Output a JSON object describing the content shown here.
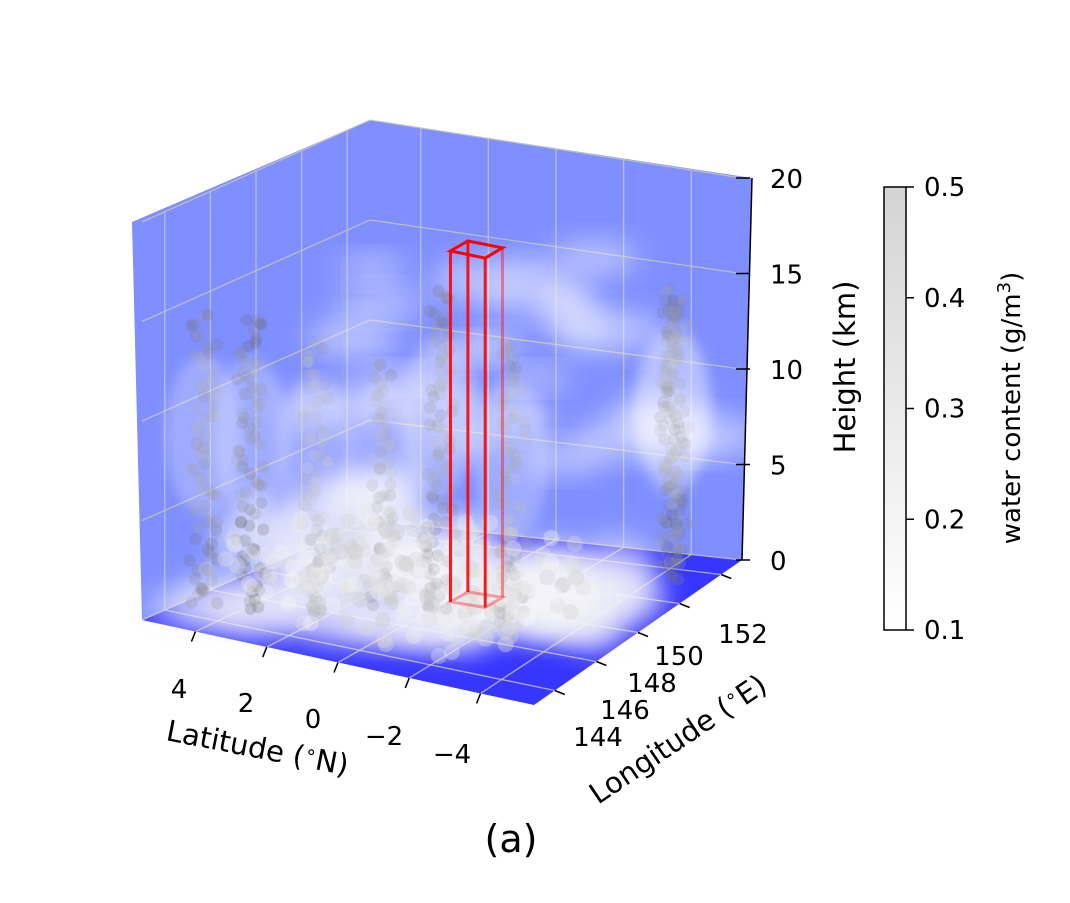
{
  "chart_data": {
    "type": "scatter",
    "subtype": "3d-scatter",
    "title": "",
    "panel_label": "(a)",
    "xlabel": "Latitude ($^\\circ$N)",
    "ylabel": "Longitude ($^\\circ$E)",
    "zlabel": "Height (km)",
    "xlabel_text": "Latitude (",
    "xlabel_deg": "∘",
    "xlabel_unit": "N)",
    "ylabel_text": "Longitude (",
    "ylabel_deg": "∘",
    "ylabel_unit": "E)",
    "xticks": [
      "4",
      "2",
      "0",
      "−2",
      "−4"
    ],
    "yticks": [
      "144",
      "146",
      "148",
      "150",
      "152"
    ],
    "zticks": [
      "0",
      "5",
      "10",
      "15",
      "20"
    ],
    "xlim": [
      5.5,
      -5.5
    ],
    "ylim": [
      143,
      153
    ],
    "zlim": [
      0,
      20
    ],
    "grid": true,
    "pane_color": "#7f8fff",
    "floor_color": "#3636ff",
    "colormap": "Greys",
    "colorbar": {
      "label": "water content (g/m",
      "label_sup": "3",
      "label_end": ")",
      "ticks": [
        "0.1",
        "0.2",
        "0.3",
        "0.4",
        "0.5"
      ],
      "range": [
        0.1,
        0.5
      ]
    },
    "highlight_box": {
      "color": "#ff0000",
      "lat_range": [
        -1.1,
        -0.1
      ],
      "lon_range": [
        148.0,
        148.8
      ],
      "height_range": [
        0,
        18
      ]
    },
    "cloud_columns": [
      {
        "lat": 4.6,
        "lon": 144.3,
        "z_top": 15,
        "water_content": 0.45
      },
      {
        "lat": 3.4,
        "lon": 144.5,
        "z_top": 15.5,
        "water_content": 0.5
      },
      {
        "lat": 2.0,
        "lon": 145.2,
        "z_top": 14,
        "water_content": 0.35
      },
      {
        "lat": 0.8,
        "lon": 146.4,
        "z_top": 13,
        "water_content": 0.4
      },
      {
        "lat": -0.4,
        "lon": 147.0,
        "z_top": 17,
        "water_content": 0.45
      },
      {
        "lat": -2.6,
        "lon": 146.8,
        "z_top": 15,
        "water_content": 0.4
      },
      {
        "lat": -4.8,
        "lon": 150.8,
        "z_top": 15,
        "water_content": 0.5
      },
      {
        "lat": -4.4,
        "lon": 151.5,
        "z_top": 15,
        "water_content": 0.4
      }
    ]
  }
}
